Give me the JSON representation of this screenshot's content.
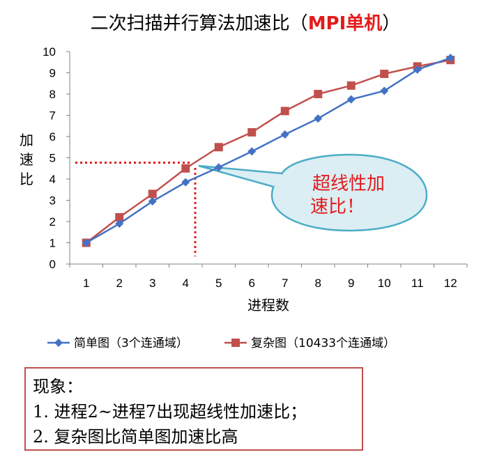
{
  "title": {
    "main": "二次扫描并行算法加速比（",
    "highlight": "MPI单机",
    "close": "）"
  },
  "callout": {
    "line1": "超线性加",
    "line2": "速比！"
  },
  "note": {
    "heading": "现象：",
    "items": [
      "1.  进程2~进程7出现超线性加速比；",
      "2.  复杂图比简单图加速比高"
    ]
  },
  "colors": {
    "simple": "#4472c4",
    "complex": "#c0504d",
    "dotted": "#e31b1b",
    "callout_border": "#4bacc6",
    "callout_fill": "#dbeef4"
  },
  "chart_data": {
    "type": "line",
    "categories": [
      "1",
      "2",
      "3",
      "4",
      "5",
      "6",
      "7",
      "8",
      "9",
      "10",
      "11",
      "12"
    ],
    "xlabel": "进程数",
    "ylabel": "加速比",
    "ylim": [
      0,
      10
    ],
    "yticks": [
      "0",
      "1",
      "2",
      "3",
      "4",
      "5",
      "6",
      "7",
      "8",
      "9",
      "10"
    ],
    "grid": false,
    "legend": "bottom",
    "series": [
      {
        "name": "简单图（3个连通域）",
        "marker": "diamond",
        "values": [
          1.0,
          1.9,
          2.95,
          3.85,
          4.55,
          5.3,
          6.1,
          6.85,
          7.75,
          8.15,
          9.15,
          9.7
        ]
      },
      {
        "name": "复杂图（10433个连通域）",
        "marker": "square",
        "values": [
          1.0,
          2.2,
          3.3,
          4.5,
          5.5,
          6.2,
          7.2,
          8.0,
          8.4,
          8.95,
          9.3,
          9.6
        ]
      }
    ]
  }
}
